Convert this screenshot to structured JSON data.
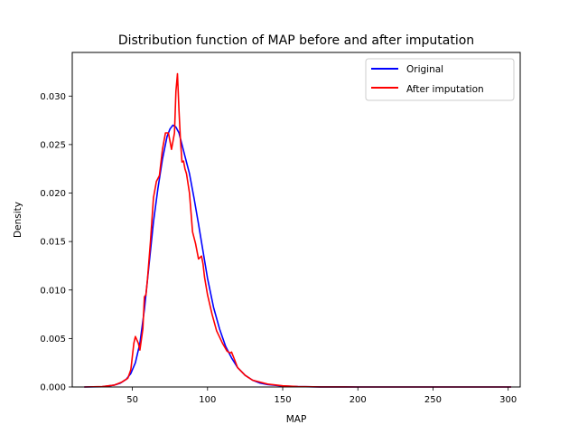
{
  "chart_data": {
    "type": "line",
    "title": "Distribution function of MAP before and after imputation",
    "xlabel": "MAP",
    "ylabel": "Density",
    "xlim": [
      10,
      308
    ],
    "ylim": [
      0,
      0.0345
    ],
    "xticks": [
      50,
      100,
      150,
      200,
      250,
      300
    ],
    "yticks": [
      0.0,
      0.005,
      0.01,
      0.015,
      0.02,
      0.025,
      0.03
    ],
    "xtick_labels": [
      "50",
      "100",
      "150",
      "200",
      "250",
      "300"
    ],
    "ytick_labels": [
      "0.000",
      "0.005",
      "0.010",
      "0.015",
      "0.020",
      "0.025",
      "0.030"
    ],
    "grid": false,
    "legend_position": "top-right",
    "series": [
      {
        "name": "Original",
        "color": "#0000ff",
        "x": [
          18,
          30,
          38,
          42,
          46,
          49,
          52,
          55,
          58,
          61,
          64,
          67,
          70,
          73,
          75,
          77,
          79,
          81,
          83,
          85,
          88,
          91,
          94,
          97,
          100,
          104,
          108,
          112,
          116,
          120,
          125,
          130,
          135,
          140,
          150,
          160,
          175,
          200,
          250,
          302
        ],
        "y": [
          0.0,
          3e-05,
          0.0002,
          0.0004,
          0.0008,
          0.0014,
          0.0025,
          0.0045,
          0.008,
          0.0125,
          0.017,
          0.0205,
          0.0235,
          0.0258,
          0.0266,
          0.027,
          0.0268,
          0.0262,
          0.025,
          0.0238,
          0.022,
          0.0195,
          0.0168,
          0.014,
          0.0112,
          0.0082,
          0.006,
          0.0042,
          0.003,
          0.002,
          0.0012,
          0.0007,
          0.0004,
          0.00025,
          0.0001,
          4e-05,
          1e-05,
          0.0,
          0.0,
          0.0
        ]
      },
      {
        "name": "After imputation",
        "color": "#ff0000",
        "x": [
          18,
          30,
          38,
          43,
          47,
          49,
          51,
          52,
          54,
          55,
          57,
          58,
          59,
          60,
          62,
          64,
          66,
          68,
          70,
          72,
          74,
          76,
          78,
          79,
          80,
          81,
          82,
          83,
          84,
          85,
          86,
          88,
          90,
          92,
          94,
          96,
          97,
          98,
          100,
          103,
          106,
          110,
          113,
          115,
          116,
          118,
          120,
          125,
          130,
          140,
          150,
          160,
          175,
          200,
          250,
          302
        ],
        "y": [
          0.0,
          5e-05,
          0.0002,
          0.0005,
          0.0009,
          0.0018,
          0.0045,
          0.0052,
          0.0045,
          0.0038,
          0.006,
          0.0093,
          0.0095,
          0.011,
          0.015,
          0.0195,
          0.0212,
          0.0218,
          0.0245,
          0.0262,
          0.0262,
          0.0245,
          0.0262,
          0.0305,
          0.0323,
          0.0285,
          0.0255,
          0.0232,
          0.0233,
          0.0225,
          0.022,
          0.02,
          0.016,
          0.0148,
          0.0132,
          0.0135,
          0.0127,
          0.0113,
          0.0095,
          0.0075,
          0.0058,
          0.0045,
          0.0037,
          0.0035,
          0.0036,
          0.0028,
          0.002,
          0.0012,
          0.0007,
          0.0003,
          0.00012,
          5e-05,
          1e-05,
          0.0,
          0.0,
          0.0
        ]
      }
    ]
  }
}
